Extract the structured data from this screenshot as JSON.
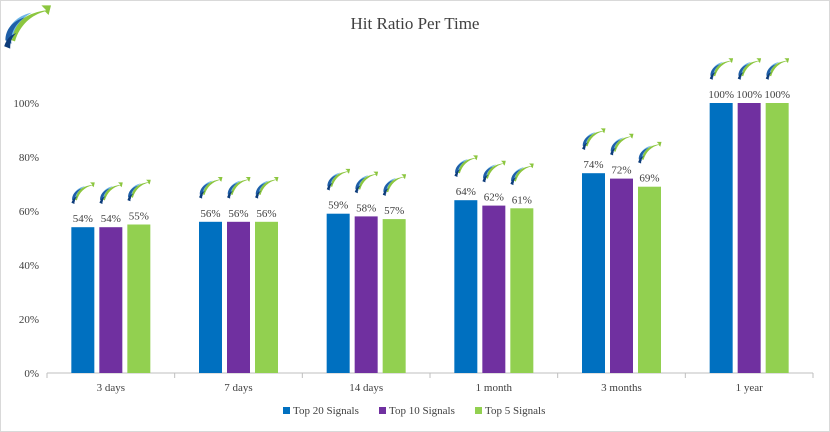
{
  "chart_data": {
    "type": "bar",
    "title": "Hit Ratio Per Time",
    "xlabel": "",
    "ylabel": "",
    "categories": [
      "3 days",
      "7 days",
      "14 days",
      "1 month",
      "3 months",
      "1 year"
    ],
    "series": [
      {
        "name": "Top 20 Signals",
        "color": "#0070c0",
        "values": [
          54,
          56,
          59,
          64,
          74,
          100
        ]
      },
      {
        "name": "Top 10 Signals",
        "color": "#7030a0",
        "values": [
          54,
          56,
          58,
          62,
          72,
          100
        ]
      },
      {
        "name": "Top 5 Signals",
        "color": "#92d050",
        "values": [
          55,
          56,
          57,
          61,
          69,
          100
        ]
      }
    ],
    "ylim": [
      0,
      100
    ],
    "yticks": [
      "0%",
      "20%",
      "40%",
      "60%",
      "80%",
      "100%"
    ],
    "ytick_values": [
      0,
      20,
      40,
      60,
      80,
      100
    ],
    "data_labels": [
      [
        "54%",
        "56%",
        "59%",
        "64%",
        "74%",
        "100%"
      ],
      [
        "54%",
        "56%",
        "58%",
        "62%",
        "72%",
        "100%"
      ],
      [
        "55%",
        "56%",
        "57%",
        "61%",
        "69%",
        "100%"
      ]
    ],
    "legend_position": "bottom",
    "grid": false,
    "logo_icon": "logo-swoosh-icon",
    "bar_marker_icon": "logo-swoosh-icon"
  }
}
